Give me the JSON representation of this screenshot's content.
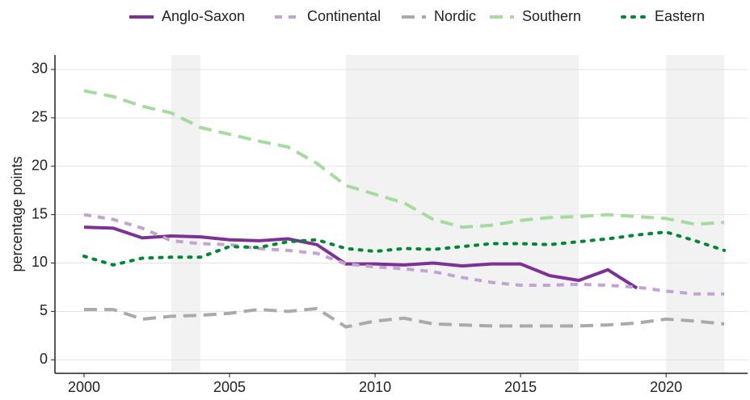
{
  "chart_data": {
    "type": "line",
    "ylabel": "percentage points",
    "x": [
      2000,
      2001,
      2002,
      2003,
      2004,
      2005,
      2006,
      2007,
      2008,
      2009,
      2010,
      2011,
      2012,
      2013,
      2014,
      2015,
      2016,
      2017,
      2018,
      2019,
      2020,
      2021,
      2022
    ],
    "series": [
      {
        "name": "Anglo-Saxon",
        "color": "#7b3294",
        "linestyle": "solid",
        "values": [
          13.7,
          13.6,
          12.6,
          12.8,
          12.7,
          12.4,
          12.3,
          12.5,
          11.9,
          9.9,
          9.9,
          9.8,
          10.0,
          9.7,
          9.9,
          9.9,
          8.7,
          8.2,
          9.3,
          7.4,
          null,
          null,
          null
        ]
      },
      {
        "name": "Continental",
        "color": "#c2a5cf",
        "linestyle": "dashed",
        "values": [
          15.0,
          14.5,
          13.6,
          12.3,
          12.0,
          11.9,
          11.5,
          11.3,
          11.0,
          9.9,
          9.6,
          9.4,
          9.1,
          8.5,
          8.0,
          7.7,
          7.7,
          7.8,
          7.7,
          7.5,
          7.1,
          6.8,
          6.8
        ]
      },
      {
        "name": "Nordic",
        "color": "#aaaaaa",
        "linestyle": "longdash",
        "values": [
          5.2,
          5.2,
          4.2,
          4.5,
          4.6,
          4.8,
          5.2,
          5.0,
          5.3,
          3.4,
          4.0,
          4.3,
          3.7,
          3.6,
          3.5,
          3.5,
          3.5,
          3.5,
          3.6,
          3.8,
          4.2,
          4.0,
          3.7
        ]
      },
      {
        "name": "Southern",
        "color": "#a6dba0",
        "linestyle": "longdash",
        "values": [
          27.8,
          27.2,
          26.2,
          25.5,
          24.0,
          23.3,
          22.6,
          22.0,
          20.3,
          18.0,
          17.1,
          16.2,
          14.5,
          13.7,
          13.9,
          14.4,
          14.7,
          14.8,
          15.0,
          14.8,
          14.6,
          14.0,
          14.2
        ]
      },
      {
        "name": "Eastern",
        "color": "#008837",
        "linestyle": "dotted",
        "values": [
          10.7,
          9.8,
          10.5,
          10.6,
          10.6,
          11.7,
          11.6,
          12.2,
          12.4,
          11.5,
          11.2,
          11.5,
          11.4,
          11.7,
          12.0,
          12.0,
          11.9,
          12.2,
          12.5,
          12.9,
          13.2,
          12.3,
          11.3
        ]
      }
    ],
    "shaded_periods": [
      [
        2003,
        2004
      ],
      [
        2009,
        2017
      ],
      [
        2020,
        2022
      ]
    ],
    "xlim": [
      1999,
      2022.8
    ],
    "xticks": [
      2000,
      2005,
      2010,
      2015,
      2020
    ],
    "ylim": [
      -1.4,
      31.5
    ],
    "yticks": [
      0,
      5,
      10,
      15,
      20,
      25,
      30
    ],
    "grid": true
  }
}
